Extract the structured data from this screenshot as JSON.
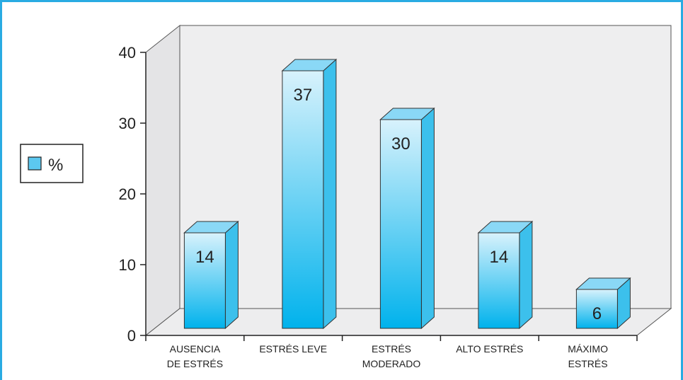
{
  "chart_data": {
    "type": "bar",
    "categories": [
      [
        "AUSENCIA",
        "DE ESTRÉS"
      ],
      [
        "ESTRÉS LEVE"
      ],
      [
        "ESTRÉS",
        "MODERADO"
      ],
      [
        "ALTO ESTRÉS"
      ],
      [
        "MÁXIMO",
        "ESTRÉS"
      ]
    ],
    "series": [
      {
        "name": "%",
        "values": [
          14,
          37,
          30,
          14,
          6
        ]
      }
    ],
    "data_labels": [
      "14",
      "37",
      "30",
      "14",
      "6"
    ],
    "y_ticks": [
      "0",
      "10",
      "20",
      "30",
      "40"
    ],
    "ylim": [
      0,
      40
    ],
    "style": "3d-column",
    "grid": false,
    "legend": {
      "position": "left",
      "label": "%"
    },
    "colors": {
      "frame": "#29abe2",
      "bar_top": "#d8f2fc",
      "bar_bottom": "#00b2ec",
      "bar_side": "#3cc0ec",
      "bar_cap": "#8ad8f6",
      "wall": "#eeeeef"
    }
  }
}
